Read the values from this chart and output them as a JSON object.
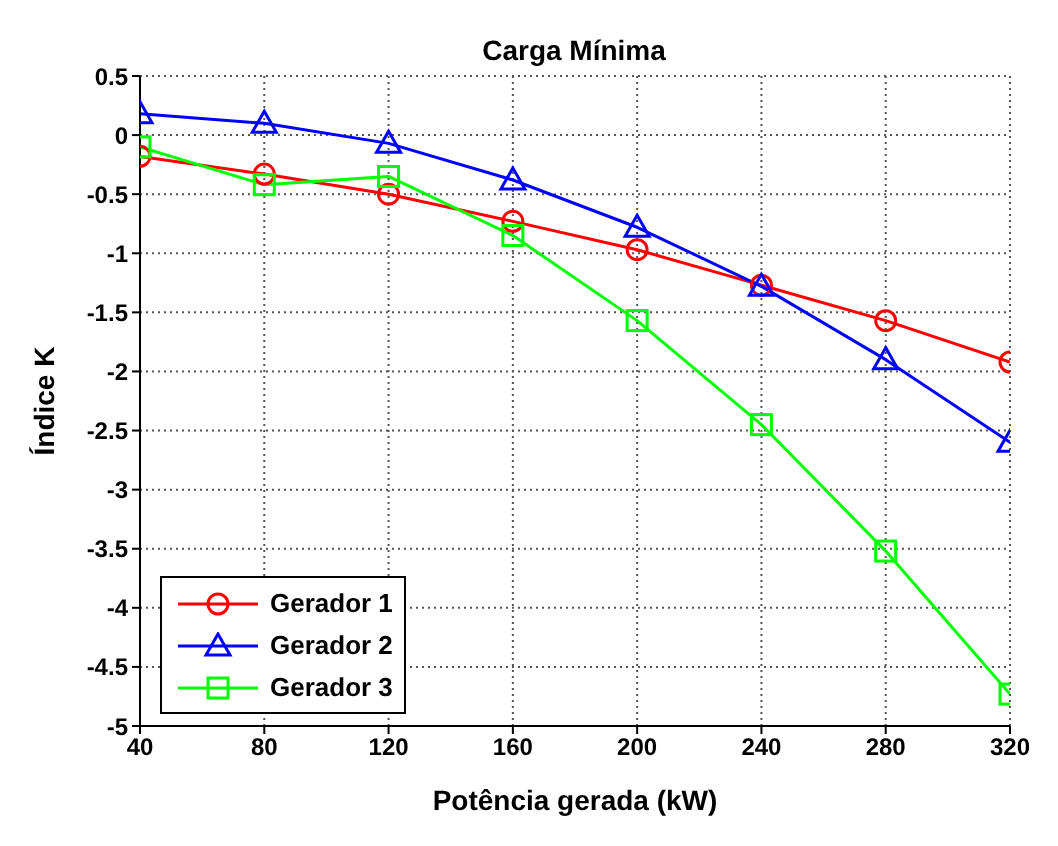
{
  "chart_data": {
    "type": "line",
    "title": "Carga Mínima",
    "xlabel": "Potência gerada (kW)",
    "ylabel": "Índice K",
    "x": [
      40,
      80,
      120,
      160,
      200,
      240,
      280,
      320
    ],
    "series": [
      {
        "name": "Gerador 1",
        "color": "#ff0000",
        "marker": "circle",
        "values": [
          -0.18,
          -0.33,
          -0.5,
          -0.73,
          -0.97,
          -1.27,
          -1.57,
          -1.92
        ]
      },
      {
        "name": "Gerador 2",
        "color": "#0000ff",
        "marker": "triangle",
        "values": [
          0.18,
          0.1,
          -0.07,
          -0.38,
          -0.78,
          -1.28,
          -1.9,
          -2.6
        ]
      },
      {
        "name": "Gerador 3",
        "color": "#00ff00",
        "marker": "square",
        "values": [
          -0.1,
          -0.42,
          -0.35,
          -0.85,
          -1.57,
          -2.45,
          -3.52,
          -4.73
        ]
      }
    ],
    "xlim": [
      40,
      320
    ],
    "xticks": [
      40,
      80,
      120,
      160,
      200,
      240,
      280,
      320
    ],
    "ylim": [
      -5,
      0.5
    ],
    "yticks": [
      -5,
      -4.5,
      -4,
      -3.5,
      -3,
      -2.5,
      -2,
      -1.5,
      -1,
      -0.5,
      0,
      0.5
    ],
    "grid": true,
    "legend": "bottom left"
  }
}
